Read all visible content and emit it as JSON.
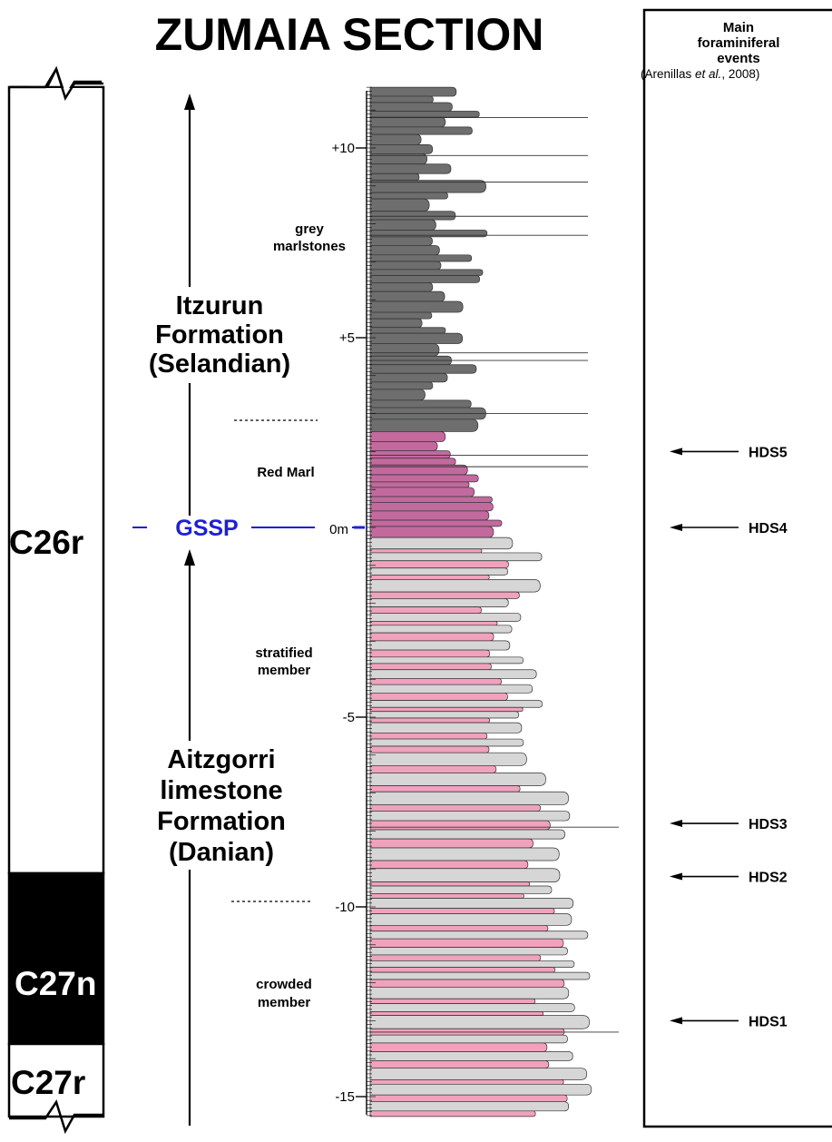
{
  "title": "ZUMAIA SECTION",
  "events_panel": {
    "heading_line1": "Main",
    "heading_line2": "foraminiferal",
    "heading_line3": "events",
    "ref_prefix": "(Arenillas ",
    "ref_italic": "et al.",
    "ref_suffix": ", 2008)",
    "events": [
      {
        "label": "HDS5",
        "depth_m": 2.0
      },
      {
        "label": "HDS4",
        "depth_m": 0.0
      },
      {
        "label": "HDS3",
        "depth_m": -7.8
      },
      {
        "label": "HDS2",
        "depth_m": -9.2
      },
      {
        "label": "HDS1",
        "depth_m": -13.0
      }
    ]
  },
  "magnetostratigraphy": [
    {
      "label": "C26r",
      "top_m": 11.5,
      "base_m": -8.6,
      "polarity": "reversed",
      "color": "#ffffff"
    },
    {
      "label": "C27n",
      "top_m": -8.6,
      "base_m": -13.8,
      "polarity": "normal",
      "color": "#000000"
    },
    {
      "label": "C27r",
      "top_m": -13.8,
      "base_m": -15.5,
      "polarity": "reversed",
      "color": "#ffffff"
    }
  ],
  "formations": [
    {
      "line1": "Itzurun",
      "line2": "Formation",
      "line3": "(Selandian)"
    },
    {
      "line1": "Aitzgorri",
      "line2": "limestone",
      "line3": "Formation",
      "line4": "(Danian)"
    }
  ],
  "gssp": {
    "label": "GSSP",
    "zero_label": "0m",
    "color": "#1f1fd6"
  },
  "members": [
    {
      "line1": "grey",
      "line2": "marlstones"
    },
    {
      "line1": "Red Marl",
      "line2": ""
    },
    {
      "line1": "stratified",
      "line2": "member"
    },
    {
      "line1": "crowded",
      "line2": "member"
    }
  ],
  "depth_scale": {
    "min_m": -15.6,
    "max_m": 11.7,
    "labels": [
      {
        "value": 10,
        "text": "+10"
      },
      {
        "value": 5,
        "text": "+5"
      },
      {
        "value": -5,
        "text": "-5"
      },
      {
        "value": -10,
        "text": "-10"
      },
      {
        "value": -15,
        "text": "-15"
      }
    ]
  },
  "colors": {
    "grey_marl": "#6e6e6e",
    "red_marl": "#c26a9e",
    "limestone": "#d6d6d6",
    "marl_pink": "#f0a2bd",
    "gssp_blue": "#1f1fd6"
  }
}
